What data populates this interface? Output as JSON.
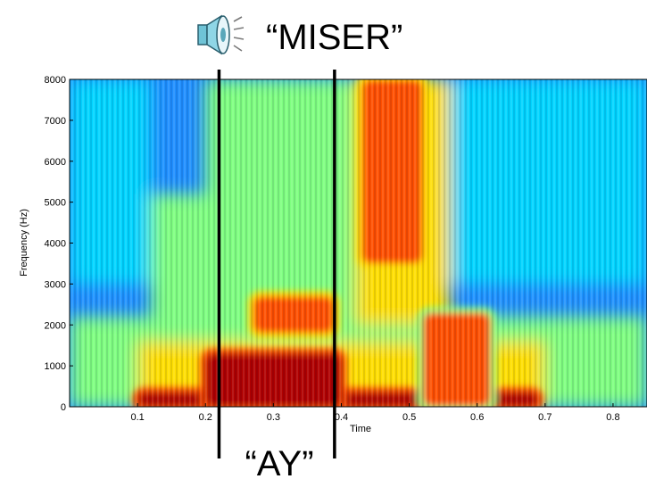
{
  "header": {
    "speaker_icon": "speaker-icon",
    "word": "“MISER”"
  },
  "segment": {
    "label": "“AY”",
    "start_time": 0.22,
    "end_time": 0.39
  },
  "chart_data": {
    "type": "heatmap",
    "title": "",
    "xlabel": "Time",
    "ylabel": "Frequency (Hz)",
    "xlim": [
      0.0,
      0.85
    ],
    "ylim": [
      0,
      8000
    ],
    "x_ticks": [
      0.1,
      0.2,
      0.3,
      0.4,
      0.5,
      0.6,
      0.7,
      0.8
    ],
    "x_tick_labels": [
      "0.1",
      "0.2",
      "0.3",
      "0.4",
      "0.5",
      "0.6",
      "0.7",
      "0.8"
    ],
    "y_ticks": [
      0,
      1000,
      2000,
      3000,
      4000,
      5000,
      6000,
      7000,
      8000
    ],
    "y_tick_labels": [
      "0",
      "1000",
      "2000",
      "3000",
      "4000",
      "5000",
      "6000",
      "7000",
      "8000"
    ],
    "colormap": [
      "#00008f",
      "#0050ff",
      "#00d5ff",
      "#7fff80",
      "#ffdf00",
      "#ff5000",
      "#b00000"
    ],
    "energy_regions": [
      {
        "name": "voicing-bar",
        "t0": 0.1,
        "t1": 0.69,
        "f0": 0,
        "f1": 350,
        "level": 0.97
      },
      {
        "name": "ay-low-formant",
        "t0": 0.2,
        "t1": 0.4,
        "f0": 0,
        "f1": 1300,
        "level": 0.95
      },
      {
        "name": "ay-second-formant",
        "t0": 0.27,
        "t1": 0.39,
        "f0": 1800,
        "f1": 2700,
        "level": 0.88
      },
      {
        "name": "s-frication",
        "t0": 0.43,
        "t1": 0.52,
        "f0": 3500,
        "f1": 8000,
        "level": 0.8
      },
      {
        "name": "er-formants",
        "t0": 0.52,
        "t1": 0.62,
        "f0": 0,
        "f1": 2300,
        "level": 0.75
      }
    ]
  }
}
